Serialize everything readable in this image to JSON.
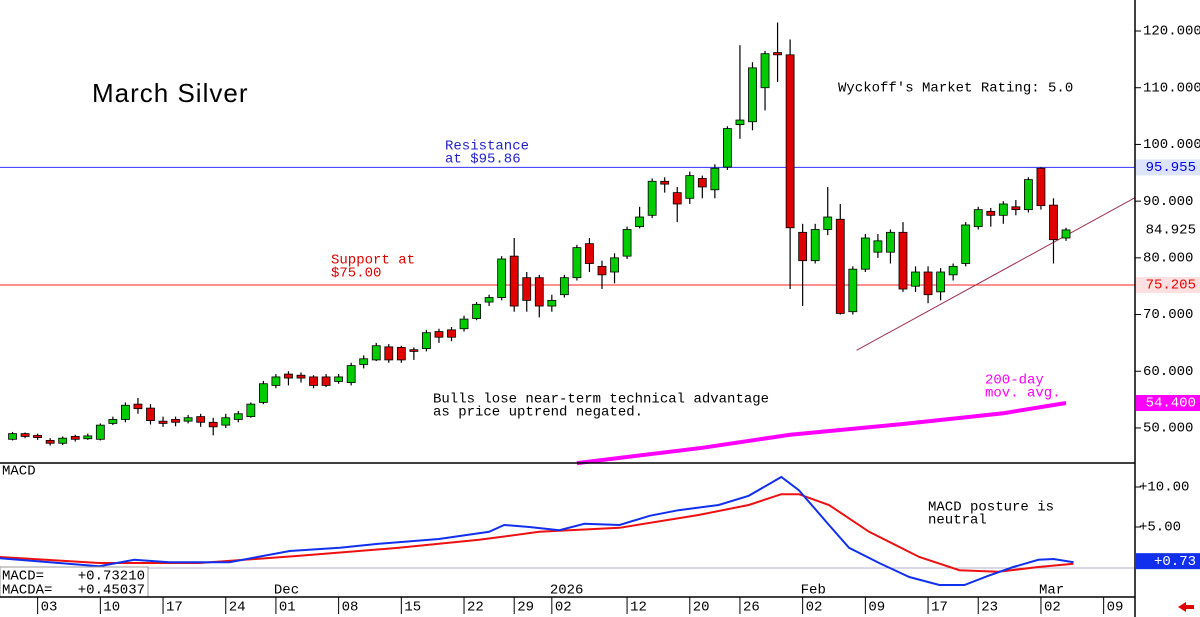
{
  "chart_data": [
    {
      "type": "candlestick",
      "title": "March Silver",
      "x": [
        0,
        1,
        2,
        3,
        4,
        5,
        6,
        7,
        8,
        9,
        10,
        11,
        12,
        13,
        14,
        15,
        16,
        17,
        18,
        19,
        20,
        21,
        22,
        23,
        24,
        25,
        26,
        27,
        28,
        29,
        30,
        31,
        32,
        33,
        34,
        35,
        36,
        37,
        38,
        39,
        40,
        41,
        42,
        43,
        44,
        45,
        46,
        47,
        48,
        49,
        50,
        51,
        52,
        53,
        54,
        55,
        56,
        57,
        58,
        59,
        60,
        61,
        62,
        63,
        64,
        65,
        66,
        67,
        68,
        69,
        70,
        71,
        72,
        73,
        74,
        75,
        76,
        77,
        78,
        79,
        80,
        81,
        82,
        83,
        84
      ],
      "open": [
        48,
        49,
        48.7,
        47.8,
        47.3,
        48.5,
        48.1,
        48,
        50.8,
        51.5,
        54.2,
        53.5,
        51.2,
        51.5,
        51.2,
        52,
        51,
        50.5,
        51.5,
        52,
        54.5,
        57.5,
        59.5,
        59.3,
        59,
        59,
        58.2,
        58,
        61.2,
        62,
        64.3,
        64.2,
        63.8,
        64,
        67,
        67.3,
        67.5,
        69.3,
        72.2,
        73,
        80.3,
        76.5,
        76.5,
        71.5,
        73.5,
        76.5,
        82.5,
        78.5,
        77.5,
        80.3,
        85.5,
        87.5,
        93.5,
        91.5,
        90.5,
        94,
        92,
        96,
        103.5,
        104,
        110,
        116.2,
        115.8,
        84.5,
        79.5,
        85,
        86.8,
        70.5,
        78,
        81,
        81,
        84.5,
        75,
        77.5,
        74,
        77,
        79,
        85.5,
        88.2,
        87.5,
        89,
        88.5,
        95.8,
        89.3,
        83.5
      ],
      "high": [
        49.3,
        49.2,
        49,
        48.2,
        48.5,
        48.8,
        49,
        50.8,
        52,
        54.5,
        55.3,
        54.2,
        52,
        52,
        52.3,
        52.5,
        51.8,
        52.5,
        53,
        54.5,
        58.3,
        59.5,
        60,
        59.8,
        59.3,
        59.5,
        59.5,
        61.5,
        62.8,
        65,
        64.8,
        64.5,
        64.2,
        67.3,
        67.5,
        67.8,
        69.8,
        72.2,
        73.5,
        80.3,
        83.5,
        77.5,
        77,
        73.5,
        77,
        82.3,
        83.5,
        79.5,
        80.8,
        85.5,
        89,
        94,
        94.2,
        92.5,
        95.2,
        94.5,
        96.5,
        103.2,
        117.5,
        114.5,
        116.5,
        121.5,
        118.5,
        86,
        86,
        92.5,
        89.5,
        78.5,
        84.2,
        84.2,
        85,
        86.3,
        78.5,
        78.5,
        78.2,
        79,
        86.3,
        89,
        88.8,
        90,
        90.2,
        94.2,
        96,
        90.5,
        85.3
      ],
      "low": [
        47.8,
        48.2,
        47.9,
        46.9,
        47,
        47.6,
        47.9,
        47.8,
        50.5,
        51,
        52.5,
        50.6,
        50.2,
        50.3,
        50.8,
        50.2,
        48.7,
        50,
        51,
        51.8,
        54.2,
        57,
        57.5,
        58,
        57,
        57.2,
        57.8,
        57.5,
        60.5,
        61.8,
        61.5,
        61.5,
        62,
        63.5,
        65,
        65.3,
        67,
        69,
        71.5,
        72.5,
        70.5,
        70.5,
        69.5,
        70.5,
        73,
        76,
        77.5,
        74.5,
        75.5,
        79.8,
        85.2,
        87,
        91.5,
        86.3,
        89.5,
        90.5,
        90.5,
        95.5,
        101,
        102.5,
        106,
        111,
        74.5,
        71.5,
        79,
        84,
        70,
        70,
        77.5,
        80,
        79,
        74,
        74,
        72,
        72.5,
        76,
        78.5,
        85,
        85.5,
        86,
        87.5,
        88,
        88.5,
        79,
        83
      ],
      "close": [
        49,
        48.5,
        48.3,
        47.3,
        48.2,
        48,
        48.6,
        50.5,
        51.5,
        54,
        53.4,
        51.3,
        50.8,
        51,
        51.8,
        51,
        50.2,
        51.8,
        52.5,
        54.2,
        57.8,
        59,
        58.8,
        58.8,
        57.5,
        57.5,
        59,
        61,
        62.2,
        64.5,
        62,
        62,
        63.5,
        66.8,
        66,
        66,
        69.2,
        71.8,
        73,
        79.8,
        71.5,
        72.5,
        71.5,
        72.5,
        76.5,
        81.8,
        79,
        77,
        80,
        85,
        87.2,
        93.5,
        93,
        89.5,
        94.5,
        92.5,
        95.8,
        102.8,
        104.3,
        113.5,
        116,
        115.8,
        85.3,
        79.5,
        85,
        87.2,
        70.2,
        78,
        83.5,
        83,
        84.5,
        74.5,
        77.5,
        73.5,
        77.5,
        78.5,
        85.8,
        88.5,
        87.5,
        89.5,
        88.5,
        93.8,
        89.2,
        83.2,
        84.925
      ],
      "up_color": "#00cc00",
      "down_color": "#e00000",
      "xlim": [
        -1,
        89.5
      ],
      "ylim": [
        43.82,
        125.47
      ],
      "yticks": [
        {
          "value": 50,
          "label": "50.000"
        },
        {
          "value": 60,
          "label": "60.000"
        },
        {
          "value": 70,
          "label": "70.000"
        },
        {
          "value": 80,
          "label": "80.000"
        },
        {
          "value": 90,
          "label": "90.000"
        },
        {
          "value": 100,
          "label": "100.000"
        },
        {
          "value": 110,
          "label": "110.000"
        },
        {
          "value": 120,
          "label": "120.000"
        }
      ],
      "xticks": [
        {
          "value": 2,
          "label": "03"
        },
        {
          "value": 7,
          "label": "10"
        },
        {
          "value": 12,
          "label": "17"
        },
        {
          "value": 17,
          "label": "24"
        },
        {
          "value": 21,
          "label": "01"
        },
        {
          "value": 26,
          "label": "08"
        },
        {
          "value": 31,
          "label": "15"
        },
        {
          "value": 36,
          "label": "22"
        },
        {
          "value": 40,
          "label": "29"
        },
        {
          "value": 43,
          "label": "02"
        },
        {
          "value": 49,
          "label": "12"
        },
        {
          "value": 54,
          "label": "20"
        },
        {
          "value": 58,
          "label": "26"
        },
        {
          "value": 63,
          "label": "02"
        },
        {
          "value": 68,
          "label": "09"
        },
        {
          "value": 73,
          "label": "17"
        },
        {
          "value": 77,
          "label": "23"
        },
        {
          "value": 82,
          "label": "02"
        },
        {
          "value": 87,
          "label": "09"
        }
      ],
      "month_labels": [
        {
          "value": 21,
          "label": "Dec"
        },
        {
          "value": 43,
          "label": "2026"
        },
        {
          "value": 63,
          "label": "Feb"
        },
        {
          "value": 82,
          "label": "Mar"
        }
      ],
      "levels": [
        {
          "value": 95.955,
          "color": "#3333ff"
        },
        {
          "value": 75.205,
          "color": "#ff2020"
        }
      ],
      "markers": [
        {
          "value": 95.955,
          "label": "95.955",
          "color": "#0000ee",
          "background": "#dde4ff"
        },
        {
          "value": 84.925,
          "label": "84.925",
          "color": "#000000",
          "background": "#ffffff"
        },
        {
          "value": 75.205,
          "label": "75.205",
          "color": "#ee0000",
          "background": "#ffe0e0"
        },
        {
          "value": 54.4,
          "label": "54.400",
          "color": "#ffffff",
          "background": "#ff00ff"
        }
      ],
      "trendline": {
        "x": [
          67.3,
          89.5
        ],
        "values": [
          63.7,
          90.6
        ],
        "color": "#a03050"
      },
      "ma": {
        "label": [
          "200-day",
          "mov. avg."
        ],
        "color": "#ff00ff",
        "x": [
          45,
          55,
          62,
          71,
          79,
          84
        ],
        "values": [
          43.8,
          46.5,
          48.8,
          50.7,
          52.6,
          54.4
        ]
      },
      "annotations": [
        {
          "lines": [
            "Wyckoff's Market Rating: 5.0"
          ],
          "color": "#000000"
        },
        {
          "lines": [
            "Resistance",
            "at $95.86"
          ],
          "color": "#2222cc"
        },
        {
          "lines": [
            "Support at",
            "$75.00"
          ],
          "color": "#dd0000"
        },
        {
          "lines": [
            "Bulls lose near-term technical advantage",
            "as price uptrend negated."
          ],
          "color": "#000000"
        }
      ]
    },
    {
      "type": "line",
      "title": "MACD",
      "series": [
        {
          "name": "MACD",
          "color": "#1030ee",
          "x": [
            -1,
            3.7,
            6.9,
            9.7,
            12.5,
            17.3,
            22.1,
            26.1,
            29.2,
            34,
            38,
            39.2,
            41.2,
            43.6,
            45.6,
            48.4,
            50.8,
            53.1,
            56.3,
            58.7,
            61.3,
            62.7,
            65.1,
            66.7,
            69.1,
            71.5,
            73.9,
            75.9,
            77.8,
            79.8,
            81.8,
            83,
            84.6
          ],
          "values": [
            1.1,
            0.5,
            0.1,
            0.9,
            0.6,
            0.6,
            2,
            2.4,
            2.9,
            3.5,
            4.4,
            5.25,
            5,
            4.6,
            5.4,
            5.25,
            6.4,
            7.1,
            7.75,
            8.9,
            11.25,
            9.6,
            5.25,
            2.4,
            0.5,
            -1.25,
            -2.25,
            -2.25,
            -1.1,
            0,
            0.9,
            1,
            0.6
          ]
        },
        {
          "name": "MACDA",
          "color": "#ee1010",
          "x": [
            -1,
            6.9,
            14.9,
            22.9,
            30.8,
            37.2,
            42,
            48.4,
            54.7,
            58.7,
            61.3,
            62.7,
            65.1,
            68.3,
            72.3,
            75.5,
            78.6,
            81.8,
            84.6
          ],
          "values": [
            1.25,
            0.5,
            0.5,
            1.4,
            2.4,
            3.4,
            4.4,
            4.9,
            6.5,
            7.75,
            9.1,
            9.1,
            7.75,
            4.4,
            1.25,
            -0.4,
            -0.6,
            0,
            0.4
          ]
        }
      ],
      "ylim": [
        -3.75,
        13
      ],
      "yticks": [
        {
          "value": 5,
          "label": "+5.00"
        },
        {
          "value": 10,
          "label": "+10.00"
        }
      ],
      "marker": {
        "value": 0.73,
        "label": "+0.73",
        "color": "#ffffff",
        "background": "#1030ee"
      },
      "readouts": [
        {
          "name": "MACD=",
          "value": "+0.73210"
        },
        {
          "name": "MACDA=",
          "value": "+0.45037"
        }
      ],
      "annotation": [
        "MACD posture is",
        "neutral"
      ]
    }
  ]
}
